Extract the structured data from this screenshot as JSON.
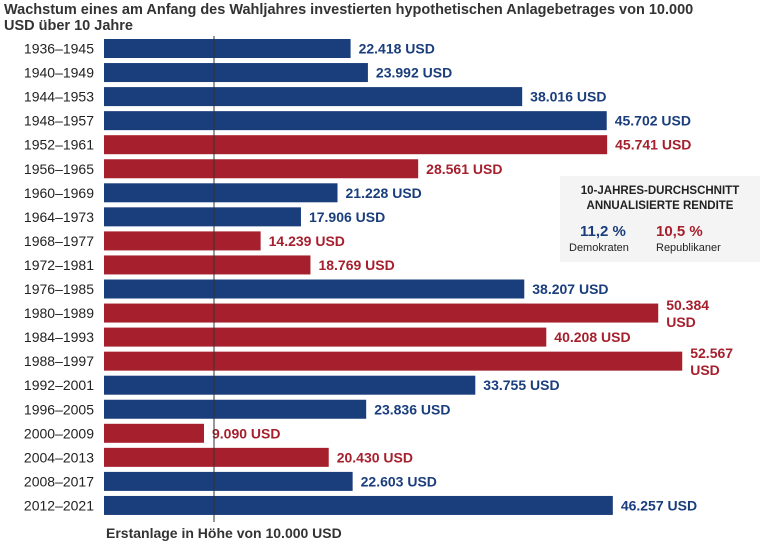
{
  "chart_data": {
    "type": "bar",
    "title": "Wachstum eines am Anfang des Wahljahres investierten hypothetischen Anlagebetrages von 10.000 USD über 10 Jahre",
    "categories": [
      "1936–1945",
      "1940–1949",
      "1944–1953",
      "1948–1957",
      "1952–1961",
      "1956–1965",
      "1960–1969",
      "1964–1973",
      "1968–1977",
      "1972–1981",
      "1976–1985",
      "1980–1989",
      "1984–1993",
      "1988–1997",
      "1992–2001",
      "1996–2005",
      "2000–2009",
      "2004–2013",
      "2008–2017",
      "2012–2021"
    ],
    "values": [
      22418,
      23992,
      38016,
      45702,
      45741,
      28561,
      21228,
      17906,
      14239,
      18769,
      38207,
      50384,
      40208,
      52567,
      33755,
      23836,
      9090,
      20430,
      22603,
      46257
    ],
    "value_labels": [
      "22.418 USD",
      "23.992 USD",
      "38.016 USD",
      "45.702 USD",
      "45.741 USD",
      "28.561 USD",
      "21.228 USD",
      "17.906 USD",
      "14.239 USD",
      "18.769 USD",
      "38.207 USD",
      "50.384 USD",
      "40.208 USD",
      "52.567 USD",
      "33.755 USD",
      "23.836 USD",
      "9.090 USD",
      "20.430 USD",
      "22.603 USD",
      "46.257 USD"
    ],
    "party": [
      "D",
      "D",
      "D",
      "D",
      "R",
      "R",
      "D",
      "D",
      "R",
      "R",
      "D",
      "R",
      "R",
      "R",
      "D",
      "D",
      "R",
      "R",
      "D",
      "D"
    ],
    "colors": {
      "D": "#1a3d7c",
      "R": "#a61f2d"
    },
    "baseline": 10000,
    "baseline_label": "Erstanlage in Höhe von 10.000 USD",
    "xlim": [
      0,
      60000
    ]
  },
  "legend": {
    "heading_line1": "10-JAHRES-DURCHSCHNITT",
    "heading_line2": "ANNUALISIERTE RENDITE",
    "dem_value": "11,2 %",
    "dem_label": "Demokraten",
    "rep_value": "10,5 %",
    "rep_label": "Republikaner"
  }
}
